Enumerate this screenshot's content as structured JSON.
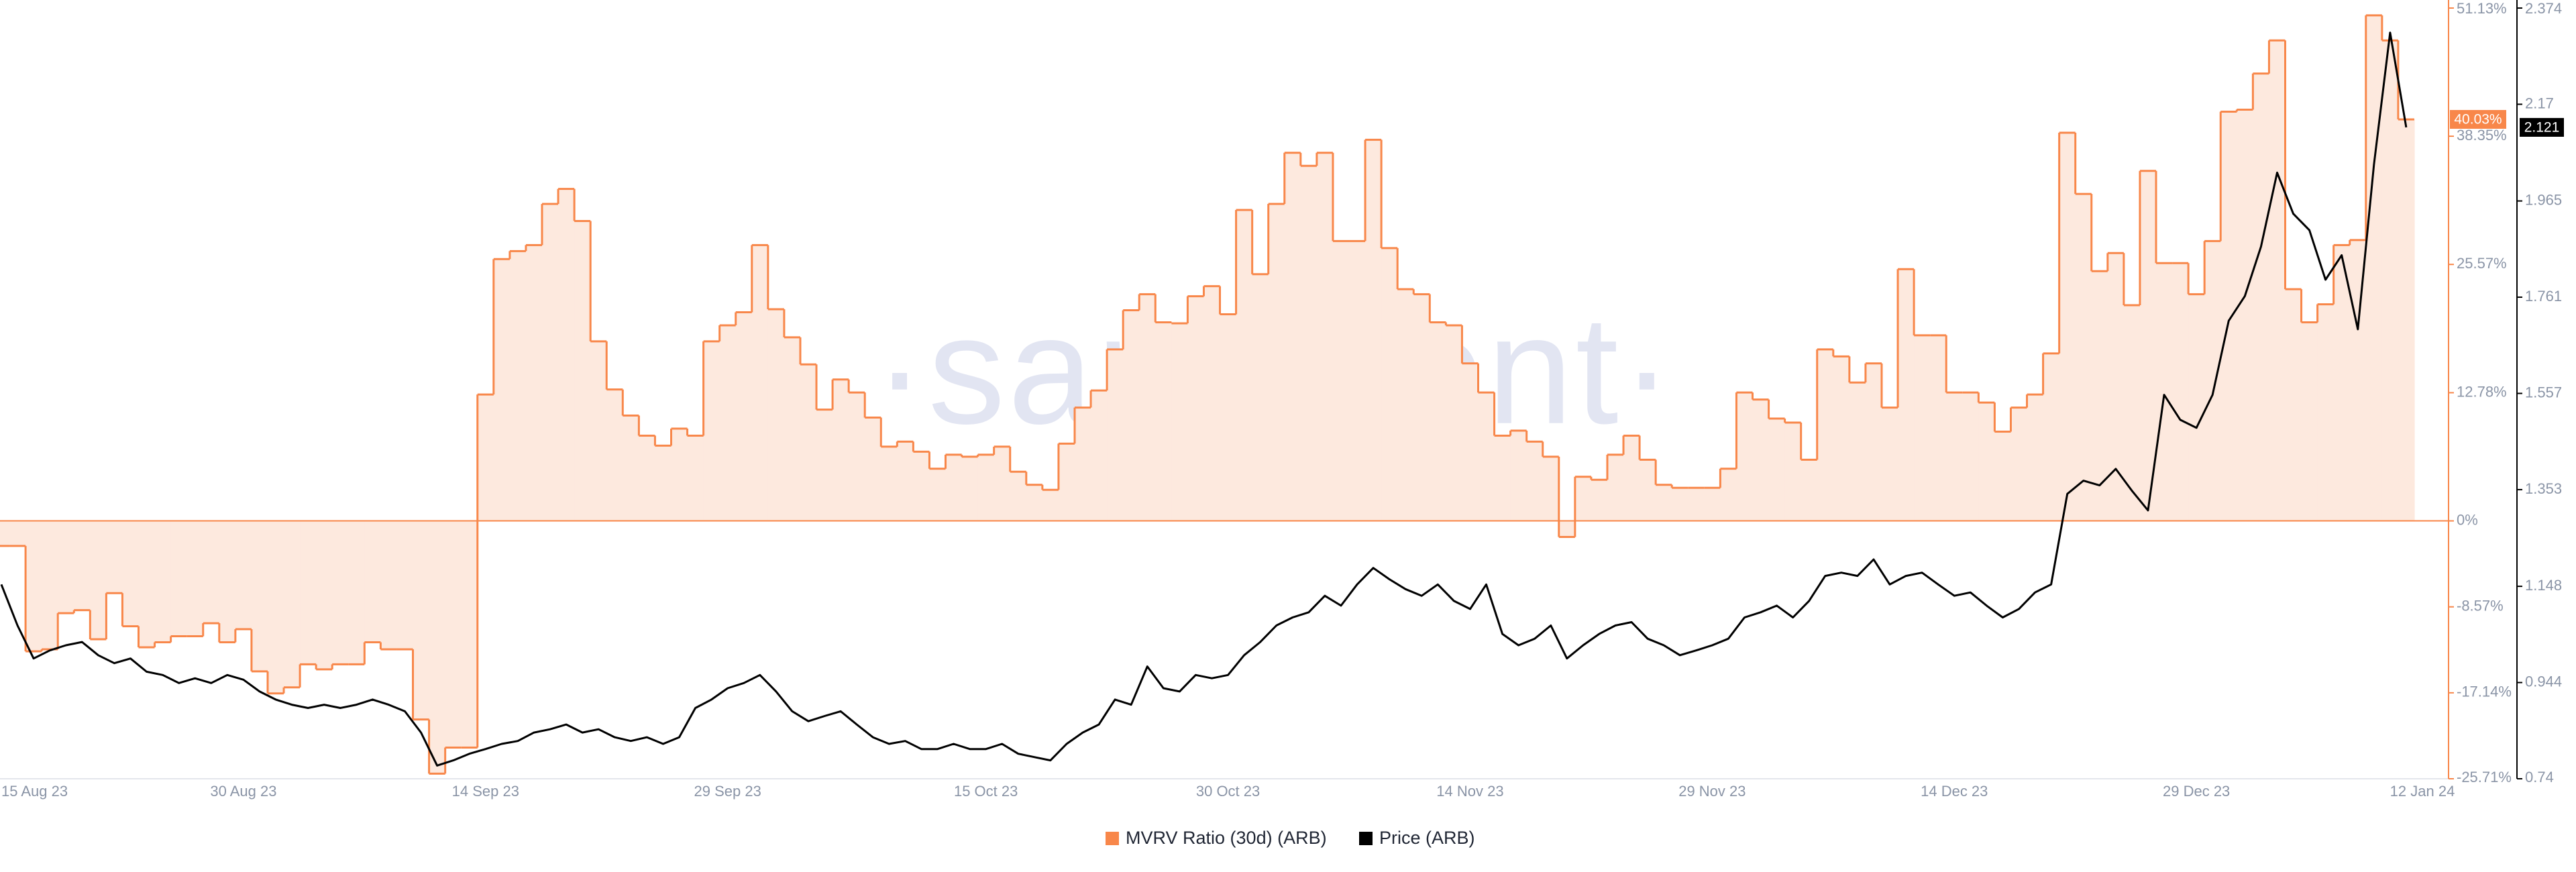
{
  "chart_data": {
    "type": "line",
    "watermark": "·santiment·",
    "x": [
      "2023-08-15",
      "2023-08-16",
      "2023-08-17",
      "2023-08-18",
      "2023-08-19",
      "2023-08-20",
      "2023-08-21",
      "2023-08-22",
      "2023-08-23",
      "2023-08-24",
      "2023-08-25",
      "2023-08-26",
      "2023-08-27",
      "2023-08-28",
      "2023-08-29",
      "2023-08-30",
      "2023-08-31",
      "2023-09-01",
      "2023-09-02",
      "2023-09-03",
      "2023-09-04",
      "2023-09-05",
      "2023-09-06",
      "2023-09-07",
      "2023-09-08",
      "2023-09-09",
      "2023-09-10",
      "2023-09-11",
      "2023-09-12",
      "2023-09-13",
      "2023-09-14",
      "2023-09-15",
      "2023-09-16",
      "2023-09-17",
      "2023-09-18",
      "2023-09-19",
      "2023-09-20",
      "2023-09-21",
      "2023-09-22",
      "2023-09-23",
      "2023-09-24",
      "2023-09-25",
      "2023-09-26",
      "2023-09-27",
      "2023-09-28",
      "2023-09-29",
      "2023-09-30",
      "2023-10-01",
      "2023-10-02",
      "2023-10-03",
      "2023-10-04",
      "2023-10-05",
      "2023-10-06",
      "2023-10-07",
      "2023-10-08",
      "2023-10-09",
      "2023-10-10",
      "2023-10-11",
      "2023-10-12",
      "2023-10-13",
      "2023-10-14",
      "2023-10-15",
      "2023-10-16",
      "2023-10-17",
      "2023-10-18",
      "2023-10-19",
      "2023-10-20",
      "2023-10-21",
      "2023-10-22",
      "2023-10-23",
      "2023-10-24",
      "2023-10-25",
      "2023-10-26",
      "2023-10-27",
      "2023-10-28",
      "2023-10-29",
      "2023-10-30",
      "2023-10-31",
      "2023-11-01",
      "2023-11-02",
      "2023-11-03",
      "2023-11-04",
      "2023-11-05",
      "2023-11-06",
      "2023-11-07",
      "2023-11-08",
      "2023-11-09",
      "2023-11-10",
      "2023-11-11",
      "2023-11-12",
      "2023-11-13",
      "2023-11-14",
      "2023-11-15",
      "2023-11-16",
      "2023-11-17",
      "2023-11-18",
      "2023-11-19",
      "2023-11-20",
      "2023-11-21",
      "2023-11-22",
      "2023-11-23",
      "2023-11-24",
      "2023-11-25",
      "2023-11-26",
      "2023-11-27",
      "2023-11-28",
      "2023-11-29",
      "2023-11-30",
      "2023-12-01",
      "2023-12-02",
      "2023-12-03",
      "2023-12-04",
      "2023-12-05",
      "2023-12-06",
      "2023-12-07",
      "2023-12-08",
      "2023-12-09",
      "2023-12-10",
      "2023-12-11",
      "2023-12-12",
      "2023-12-13",
      "2023-12-14",
      "2023-12-15",
      "2023-12-16",
      "2023-12-17",
      "2023-12-18",
      "2023-12-19",
      "2023-12-20",
      "2023-12-21",
      "2023-12-22",
      "2023-12-23",
      "2023-12-24",
      "2023-12-25",
      "2023-12-26",
      "2023-12-27",
      "2023-12-28",
      "2023-12-29",
      "2023-12-30",
      "2023-12-31",
      "2024-01-01",
      "2024-01-02",
      "2024-01-03",
      "2024-01-04",
      "2024-01-05",
      "2024-01-06",
      "2024-01-07",
      "2024-01-08",
      "2024-01-09",
      "2024-01-10",
      "2024-01-11"
    ],
    "xticks": [
      {
        "value": "2023-08-15",
        "label": "15 Aug 23"
      },
      {
        "value": "2023-08-30",
        "label": "30 Aug 23"
      },
      {
        "value": "2023-09-14",
        "label": "14 Sep 23"
      },
      {
        "value": "2023-09-29",
        "label": "29 Sep 23"
      },
      {
        "value": "2023-10-15",
        "label": "15 Oct 23"
      },
      {
        "value": "2023-10-30",
        "label": "30 Oct 23"
      },
      {
        "value": "2023-11-14",
        "label": "14 Nov 23"
      },
      {
        "value": "2023-11-29",
        "label": "29 Nov 23"
      },
      {
        "value": "2023-12-14",
        "label": "14 Dec 23"
      },
      {
        "value": "2023-12-29",
        "label": "29 Dec 23"
      },
      {
        "value": "2024-01-12",
        "label": "12 Jan 24"
      }
    ],
    "ylim": [
      -25.71,
      51.13
    ],
    "yticks": [
      {
        "value": 51.13,
        "label": "51.13%"
      },
      {
        "value": 38.35,
        "label": "38.35%"
      },
      {
        "value": 25.57,
        "label": "25.57%"
      },
      {
        "value": 12.78,
        "label": "12.78%"
      },
      {
        "value": 0,
        "label": "0%"
      },
      {
        "value": -8.57,
        "label": "-8.57%"
      },
      {
        "value": -17.14,
        "label": "-17.14%"
      },
      {
        "value": -25.71,
        "label": "-25.71%"
      }
    ],
    "y2lim": [
      0.74,
      2.374
    ],
    "y2ticks": [
      2.374,
      2.17,
      1.965,
      1.761,
      1.557,
      1.353,
      1.148,
      0.944,
      0.74
    ],
    "series": [
      {
        "name": "MVRV Ratio (30d) (ARB)",
        "color": "#f8874a",
        "fill": "#fde9de",
        "axis": "y",
        "step": true,
        "last_value_label": "40.03%",
        "values": [
          -2.5,
          -2.5,
          -13.0,
          -12.8,
          -9.2,
          -8.9,
          -11.8,
          -7.2,
          -10.5,
          -12.6,
          -12.1,
          -11.5,
          -11.5,
          -10.2,
          -12.1,
          -10.8,
          -15.0,
          -17.2,
          -16.6,
          -14.3,
          -14.8,
          -14.3,
          -14.3,
          -12.1,
          -12.8,
          -12.8,
          -19.8,
          -25.2,
          -22.6,
          -22.6,
          12.6,
          26.1,
          26.9,
          27.5,
          31.6,
          33.1,
          29.9,
          17.9,
          13.1,
          10.5,
          8.5,
          7.5,
          9.2,
          8.5,
          17.9,
          19.5,
          20.8,
          27.5,
          21.1,
          18.3,
          15.6,
          11.1,
          14.1,
          12.8,
          10.3,
          7.4,
          7.9,
          6.9,
          5.2,
          6.6,
          6.4,
          6.6,
          7.4,
          4.9,
          3.6,
          3.1,
          7.7,
          11.3,
          13.0,
          17.1,
          21.0,
          22.6,
          19.8,
          19.7,
          22.4,
          23.4,
          20.6,
          31.0,
          24.6,
          31.6,
          36.7,
          35.4,
          36.7,
          27.9,
          27.9,
          38.0,
          27.2,
          23.1,
          22.6,
          19.8,
          19.5,
          15.7,
          12.8,
          8.5,
          9.0,
          7.9,
          6.4,
          -1.6,
          4.4,
          4.1,
          6.6,
          8.5,
          6.1,
          3.6,
          3.3,
          3.3,
          3.3,
          5.2,
          12.8,
          12.1,
          10.2,
          9.8,
          6.1,
          17.1,
          16.4,
          13.8,
          15.7,
          11.3,
          25.1,
          18.5,
          18.5,
          12.8,
          12.8,
          11.8,
          8.9,
          11.3,
          12.6,
          16.7,
          38.7,
          32.6,
          24.9,
          26.7,
          21.5,
          34.9,
          25.7,
          25.7,
          22.6,
          27.9,
          40.8,
          41.0,
          44.6,
          47.9,
          23.1,
          19.8,
          21.6,
          27.5,
          28.0,
          50.4,
          47.9,
          40.03
        ]
      },
      {
        "name": "Price (ARB)",
        "color": "#000000",
        "axis": "y2",
        "values": [
          1.152,
          1.065,
          0.995,
          1.012,
          1.023,
          1.03,
          1.002,
          0.985,
          0.995,
          0.967,
          0.96,
          0.943,
          0.953,
          0.943,
          0.96,
          0.95,
          0.925,
          0.908,
          0.897,
          0.89,
          0.897,
          0.89,
          0.897,
          0.908,
          0.897,
          0.883,
          0.838,
          0.768,
          0.779,
          0.793,
          0.803,
          0.814,
          0.82,
          0.838,
          0.845,
          0.855,
          0.838,
          0.845,
          0.828,
          0.82,
          0.828,
          0.814,
          0.828,
          0.89,
          0.908,
          0.932,
          0.943,
          0.96,
          0.925,
          0.883,
          0.862,
          0.873,
          0.883,
          0.855,
          0.828,
          0.814,
          0.82,
          0.803,
          0.803,
          0.814,
          0.803,
          0.803,
          0.814,
          0.793,
          0.786,
          0.779,
          0.814,
          0.838,
          0.855,
          0.908,
          0.897,
          0.978,
          0.932,
          0.925,
          0.96,
          0.953,
          0.96,
          1.002,
          1.03,
          1.065,
          1.082,
          1.093,
          1.128,
          1.107,
          1.152,
          1.187,
          1.163,
          1.142,
          1.128,
          1.152,
          1.117,
          1.1,
          1.152,
          1.047,
          1.023,
          1.037,
          1.065,
          0.995,
          1.023,
          1.047,
          1.065,
          1.072,
          1.037,
          1.023,
          1.002,
          1.012,
          1.023,
          1.037,
          1.082,
          1.093,
          1.107,
          1.082,
          1.117,
          1.17,
          1.177,
          1.17,
          1.205,
          1.152,
          1.17,
          1.177,
          1.152,
          1.128,
          1.135,
          1.107,
          1.082,
          1.1,
          1.135,
          1.152,
          1.344,
          1.372,
          1.362,
          1.397,
          1.351,
          1.309,
          1.554,
          1.501,
          1.484,
          1.554,
          1.711,
          1.763,
          1.868,
          2.025,
          1.938,
          1.903,
          1.798,
          1.85,
          1.693,
          2.042,
          2.322,
          2.121
        ]
      }
    ]
  }
}
